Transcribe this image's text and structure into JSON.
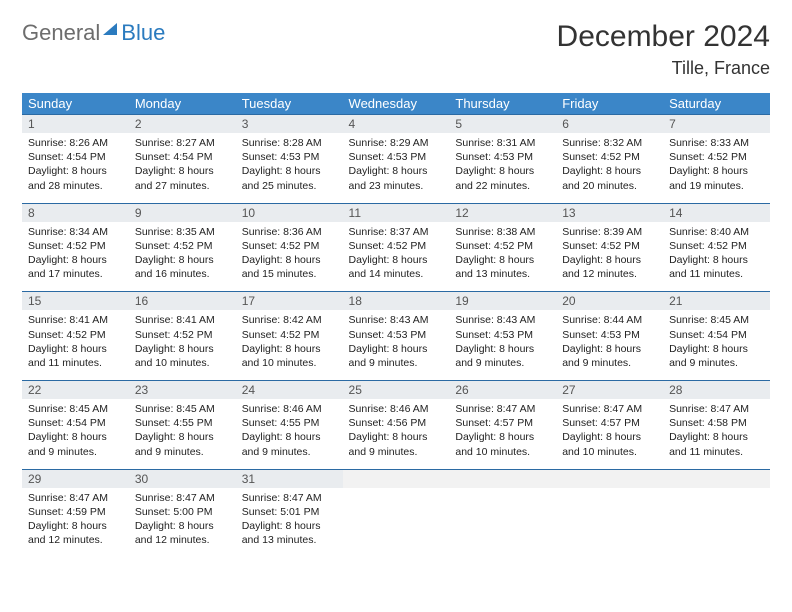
{
  "logo": {
    "part1": "General",
    "part2": "Blue"
  },
  "title": "December 2024",
  "location": "Tille, France",
  "colors": {
    "header_bg": "#3b86c8",
    "header_text": "#ffffff",
    "daynum_bg": "#e9ecef",
    "border": "#2b6aa3",
    "logo_gray": "#6d6d6d",
    "logo_blue": "#2b7bbf"
  },
  "days_of_week": [
    "Sunday",
    "Monday",
    "Tuesday",
    "Wednesday",
    "Thursday",
    "Friday",
    "Saturday"
  ],
  "weeks": [
    [
      {
        "n": "1",
        "sr": "Sunrise: 8:26 AM",
        "ss": "Sunset: 4:54 PM",
        "d1": "Daylight: 8 hours",
        "d2": "and 28 minutes."
      },
      {
        "n": "2",
        "sr": "Sunrise: 8:27 AM",
        "ss": "Sunset: 4:54 PM",
        "d1": "Daylight: 8 hours",
        "d2": "and 27 minutes."
      },
      {
        "n": "3",
        "sr": "Sunrise: 8:28 AM",
        "ss": "Sunset: 4:53 PM",
        "d1": "Daylight: 8 hours",
        "d2": "and 25 minutes."
      },
      {
        "n": "4",
        "sr": "Sunrise: 8:29 AM",
        "ss": "Sunset: 4:53 PM",
        "d1": "Daylight: 8 hours",
        "d2": "and 23 minutes."
      },
      {
        "n": "5",
        "sr": "Sunrise: 8:31 AM",
        "ss": "Sunset: 4:53 PM",
        "d1": "Daylight: 8 hours",
        "d2": "and 22 minutes."
      },
      {
        "n": "6",
        "sr": "Sunrise: 8:32 AM",
        "ss": "Sunset: 4:52 PM",
        "d1": "Daylight: 8 hours",
        "d2": "and 20 minutes."
      },
      {
        "n": "7",
        "sr": "Sunrise: 8:33 AM",
        "ss": "Sunset: 4:52 PM",
        "d1": "Daylight: 8 hours",
        "d2": "and 19 minutes."
      }
    ],
    [
      {
        "n": "8",
        "sr": "Sunrise: 8:34 AM",
        "ss": "Sunset: 4:52 PM",
        "d1": "Daylight: 8 hours",
        "d2": "and 17 minutes."
      },
      {
        "n": "9",
        "sr": "Sunrise: 8:35 AM",
        "ss": "Sunset: 4:52 PM",
        "d1": "Daylight: 8 hours",
        "d2": "and 16 minutes."
      },
      {
        "n": "10",
        "sr": "Sunrise: 8:36 AM",
        "ss": "Sunset: 4:52 PM",
        "d1": "Daylight: 8 hours",
        "d2": "and 15 minutes."
      },
      {
        "n": "11",
        "sr": "Sunrise: 8:37 AM",
        "ss": "Sunset: 4:52 PM",
        "d1": "Daylight: 8 hours",
        "d2": "and 14 minutes."
      },
      {
        "n": "12",
        "sr": "Sunrise: 8:38 AM",
        "ss": "Sunset: 4:52 PM",
        "d1": "Daylight: 8 hours",
        "d2": "and 13 minutes."
      },
      {
        "n": "13",
        "sr": "Sunrise: 8:39 AM",
        "ss": "Sunset: 4:52 PM",
        "d1": "Daylight: 8 hours",
        "d2": "and 12 minutes."
      },
      {
        "n": "14",
        "sr": "Sunrise: 8:40 AM",
        "ss": "Sunset: 4:52 PM",
        "d1": "Daylight: 8 hours",
        "d2": "and 11 minutes."
      }
    ],
    [
      {
        "n": "15",
        "sr": "Sunrise: 8:41 AM",
        "ss": "Sunset: 4:52 PM",
        "d1": "Daylight: 8 hours",
        "d2": "and 11 minutes."
      },
      {
        "n": "16",
        "sr": "Sunrise: 8:41 AM",
        "ss": "Sunset: 4:52 PM",
        "d1": "Daylight: 8 hours",
        "d2": "and 10 minutes."
      },
      {
        "n": "17",
        "sr": "Sunrise: 8:42 AM",
        "ss": "Sunset: 4:52 PM",
        "d1": "Daylight: 8 hours",
        "d2": "and 10 minutes."
      },
      {
        "n": "18",
        "sr": "Sunrise: 8:43 AM",
        "ss": "Sunset: 4:53 PM",
        "d1": "Daylight: 8 hours",
        "d2": "and 9 minutes."
      },
      {
        "n": "19",
        "sr": "Sunrise: 8:43 AM",
        "ss": "Sunset: 4:53 PM",
        "d1": "Daylight: 8 hours",
        "d2": "and 9 minutes."
      },
      {
        "n": "20",
        "sr": "Sunrise: 8:44 AM",
        "ss": "Sunset: 4:53 PM",
        "d1": "Daylight: 8 hours",
        "d2": "and 9 minutes."
      },
      {
        "n": "21",
        "sr": "Sunrise: 8:45 AM",
        "ss": "Sunset: 4:54 PM",
        "d1": "Daylight: 8 hours",
        "d2": "and 9 minutes."
      }
    ],
    [
      {
        "n": "22",
        "sr": "Sunrise: 8:45 AM",
        "ss": "Sunset: 4:54 PM",
        "d1": "Daylight: 8 hours",
        "d2": "and 9 minutes."
      },
      {
        "n": "23",
        "sr": "Sunrise: 8:45 AM",
        "ss": "Sunset: 4:55 PM",
        "d1": "Daylight: 8 hours",
        "d2": "and 9 minutes."
      },
      {
        "n": "24",
        "sr": "Sunrise: 8:46 AM",
        "ss": "Sunset: 4:55 PM",
        "d1": "Daylight: 8 hours",
        "d2": "and 9 minutes."
      },
      {
        "n": "25",
        "sr": "Sunrise: 8:46 AM",
        "ss": "Sunset: 4:56 PM",
        "d1": "Daylight: 8 hours",
        "d2": "and 9 minutes."
      },
      {
        "n": "26",
        "sr": "Sunrise: 8:47 AM",
        "ss": "Sunset: 4:57 PM",
        "d1": "Daylight: 8 hours",
        "d2": "and 10 minutes."
      },
      {
        "n": "27",
        "sr": "Sunrise: 8:47 AM",
        "ss": "Sunset: 4:57 PM",
        "d1": "Daylight: 8 hours",
        "d2": "and 10 minutes."
      },
      {
        "n": "28",
        "sr": "Sunrise: 8:47 AM",
        "ss": "Sunset: 4:58 PM",
        "d1": "Daylight: 8 hours",
        "d2": "and 11 minutes."
      }
    ],
    [
      {
        "n": "29",
        "sr": "Sunrise: 8:47 AM",
        "ss": "Sunset: 4:59 PM",
        "d1": "Daylight: 8 hours",
        "d2": "and 12 minutes."
      },
      {
        "n": "30",
        "sr": "Sunrise: 8:47 AM",
        "ss": "Sunset: 5:00 PM",
        "d1": "Daylight: 8 hours",
        "d2": "and 12 minutes."
      },
      {
        "n": "31",
        "sr": "Sunrise: 8:47 AM",
        "ss": "Sunset: 5:01 PM",
        "d1": "Daylight: 8 hours",
        "d2": "and 13 minutes."
      },
      null,
      null,
      null,
      null
    ]
  ]
}
